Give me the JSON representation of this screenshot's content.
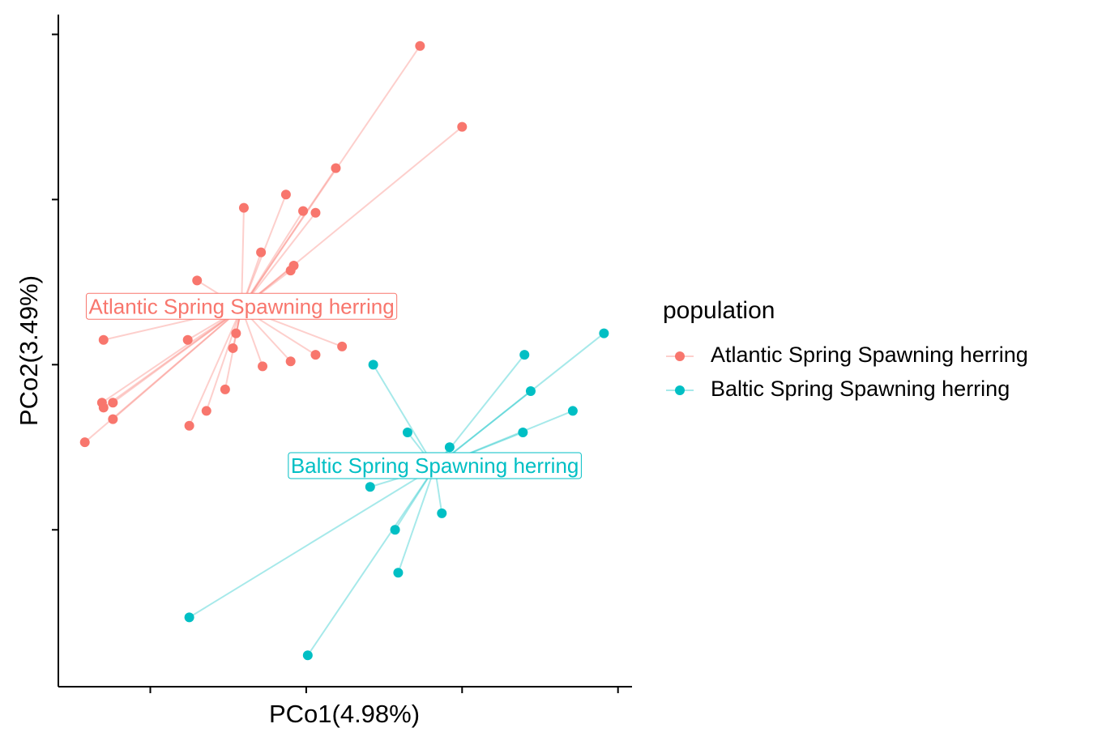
{
  "chart_data": {
    "type": "scatter",
    "xlabel": "PCo1(4.98%)",
    "ylabel": "PCo2(3.49%)",
    "legend_title": "population",
    "legend": "right",
    "spider": true,
    "centroid_labels": true,
    "xlim": [
      -1.59,
      2.09
    ],
    "ylim": [
      -1.95,
      2.12
    ],
    "xticks": [
      -1,
      0,
      1,
      2
    ],
    "yticks": [
      -1,
      0,
      1,
      2
    ],
    "series": [
      {
        "name": "Atlantic Spring Spawning herring",
        "color": "#F8766D",
        "x": [
          0.73,
          1.0,
          0.19,
          -0.13,
          -0.02,
          0.06,
          -0.4,
          -0.29,
          -0.08,
          -0.1,
          -0.7,
          -0.39,
          -0.45,
          -1.3,
          -0.76,
          -0.47,
          -0.1,
          0.06,
          0.23,
          -0.28,
          -0.52,
          -1.31,
          -1.24,
          -1.3,
          -0.64,
          -1.24,
          -0.75,
          -1.42
        ],
        "values": [
          1.93,
          1.44,
          1.19,
          1.03,
          0.93,
          0.92,
          0.95,
          0.68,
          0.6,
          0.57,
          0.51,
          0.4,
          0.19,
          0.15,
          0.15,
          0.1,
          0.02,
          0.06,
          0.11,
          -0.01,
          -0.15,
          -0.23,
          -0.23,
          -0.26,
          -0.28,
          -0.33,
          -0.37,
          -0.47
        ]
      },
      {
        "name": "Baltic Spring Spawning herring",
        "color": "#00BFC4",
        "x": [
          0.43,
          1.4,
          1.91,
          1.44,
          1.71,
          0.65,
          1.39,
          0.92,
          0.41,
          0.87,
          0.57,
          0.59,
          -0.75,
          0.01
        ],
        "values": [
          0.0,
          0.06,
          0.19,
          -0.16,
          -0.28,
          -0.41,
          -0.41,
          -0.5,
          -0.74,
          -0.9,
          -1.0,
          -1.26,
          -1.53,
          -1.76
        ]
      }
    ]
  }
}
